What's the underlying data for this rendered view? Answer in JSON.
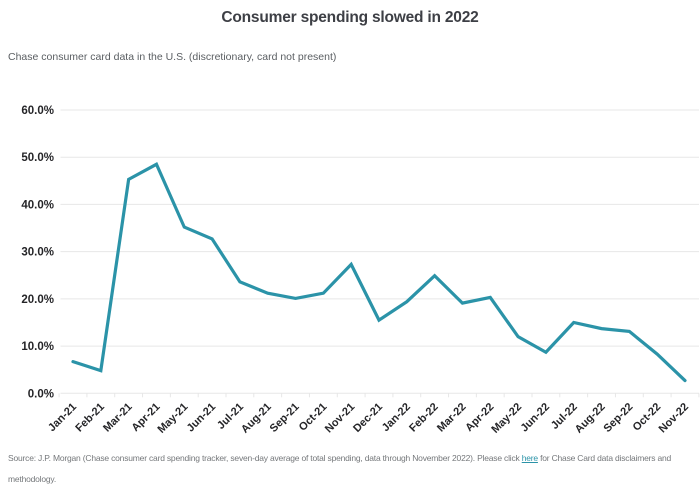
{
  "header": {
    "title": "Consumer spending slowed in 2022",
    "subtitle": "Chase consumer card data in the U.S. (discretionary, card not present)"
  },
  "chart_data": {
    "type": "line",
    "title": "Consumer spending slowed in 2022",
    "categories": [
      "Jan-21",
      "Feb-21",
      "Mar-21",
      "Apr-21",
      "May-21",
      "Jun-21",
      "Jul-21",
      "Aug-21",
      "Sep-21",
      "Oct-21",
      "Nov-21",
      "Dec-21",
      "Jan-22",
      "Feb-22",
      "Mar-22",
      "Apr-22",
      "May-22",
      "Jun-22",
      "Jul-22",
      "Aug-22",
      "Sep-22",
      "Oct-22",
      "Nov-22"
    ],
    "values": [
      6.7,
      4.8,
      45.3,
      48.5,
      35.2,
      32.7,
      23.6,
      21.2,
      20.1,
      21.2,
      27.3,
      15.5,
      19.4,
      24.9,
      19.1,
      20.3,
      12.0,
      8.7,
      15.0,
      13.7,
      13.1,
      8.3,
      2.7
    ],
    "ylabel": "",
    "xlabel": "",
    "ylim": [
      0,
      60
    ],
    "ytick_labels": [
      "0.0%",
      "10.0%",
      "20.0%",
      "30.0%",
      "40.0%",
      "50.0%",
      "60.0%"
    ],
    "grid": "horizontal",
    "legend": "none",
    "line_color": "#2b93a8"
  },
  "footer": {
    "text_before_link": "Source: J.P. Morgan (Chase consumer card spending tracker, seven-day average of total spending, data through November 2022). Please click ",
    "link_text": "here",
    "text_after_link": " for Chase Card data disclaimers and methodology."
  },
  "colors": {
    "line": "#2b93a8",
    "title_text": "#3d3f45",
    "subtitle_text": "#5a5e62",
    "axis_text": "#252528",
    "grid": "#e7e7e7",
    "footer_text": "#75787b",
    "link": "#2b93a8"
  }
}
